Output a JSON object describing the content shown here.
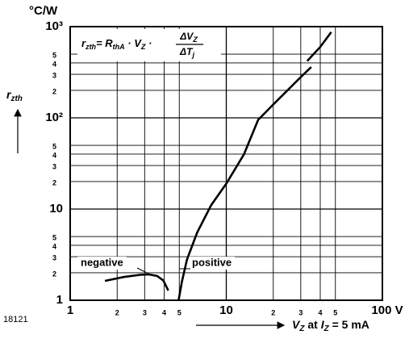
{
  "chart_data": {
    "type": "line",
    "log_x": true,
    "log_y": true,
    "grid": true,
    "unit_label": "°C/W",
    "y_label": {
      "main": "r",
      "sub": "zth"
    },
    "x_label": [
      "V",
      "Z",
      " at ",
      "I",
      "Z",
      " = 5 mA"
    ],
    "figure_number": "18121",
    "formula_parts": [
      "r",
      "zth",
      "= R",
      "thA",
      " · V",
      "Z",
      " · ",
      "ΔV",
      "Z",
      "ΔT",
      "j"
    ],
    "xlim": [
      1,
      100
    ],
    "ylim": [
      1,
      1000
    ],
    "xticks": [
      1,
      2,
      3,
      4,
      5,
      10,
      {
        "value": 20,
        "label": "2"
      },
      {
        "value": 30,
        "label": "3"
      },
      {
        "value": 40,
        "label": "4"
      },
      {
        "value": 50,
        "label": "5"
      },
      {
        "value": 100,
        "label": "100 V"
      }
    ],
    "yticks": [
      1,
      2,
      3,
      4,
      5,
      10,
      {
        "value": 20,
        "label": "2"
      },
      {
        "value": 30,
        "label": "3"
      },
      {
        "value": 40,
        "label": "4"
      },
      {
        "value": 50,
        "label": "5"
      },
      {
        "value": 100,
        "label": "10²"
      },
      {
        "value": 200,
        "label": "2"
      },
      {
        "value": 300,
        "label": "3"
      },
      {
        "value": 400,
        "label": "4"
      },
      {
        "value": 500,
        "label": "5"
      },
      {
        "value": 1000,
        "label": "10³"
      }
    ],
    "series": [
      {
        "name": "negative",
        "color": "#000000",
        "x": [
          1.67,
          2.2,
          2.8,
          3.2,
          3.6,
          3.95,
          4.25
        ],
        "values": [
          1.63,
          1.8,
          1.9,
          1.92,
          1.85,
          1.65,
          1.28
        ]
      },
      {
        "name": "positive",
        "color": "#000000",
        "x": [
          4.95,
          5.2,
          5.6,
          6.5,
          8,
          10,
          13,
          16,
          20,
          25,
          30,
          35,
          35.5,
          33,
          40,
          47
        ],
        "values": [
          1,
          1.6,
          2.8,
          5.5,
          11,
          19,
          40,
          95,
          140,
          205,
          280,
          360,
          null,
          420,
          600,
          870
        ]
      }
    ]
  }
}
